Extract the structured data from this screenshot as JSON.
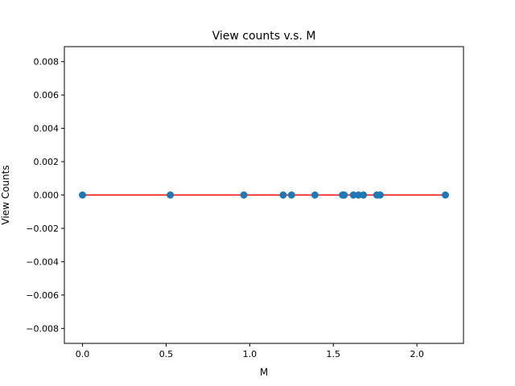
{
  "chart_data": {
    "type": "scatter",
    "title": "View counts v.s. M",
    "xlabel": "M",
    "ylabel": "View Counts",
    "xlim": [
      -0.1085,
      2.2785
    ],
    "ylim": [
      -0.0089,
      0.0089
    ],
    "grid": false,
    "x_ticks": [
      0.0,
      0.5,
      1.0,
      1.5,
      2.0
    ],
    "x_tick_labels": [
      "0.0",
      "0.5",
      "1.0",
      "1.5",
      "2.0"
    ],
    "y_ticks": [
      -0.008,
      -0.006,
      -0.004,
      -0.002,
      0.0,
      0.002,
      0.004,
      0.006,
      0.008
    ],
    "y_tick_labels": [
      "−0.008",
      "−0.006",
      "−0.004",
      "−0.002",
      "0.000",
      "0.002",
      "0.004",
      "0.006",
      "0.008"
    ],
    "points": {
      "x": [
        0.0,
        0.525,
        0.965,
        1.2,
        1.25,
        1.39,
        1.555,
        1.565,
        1.62,
        1.65,
        1.68,
        1.76,
        1.78,
        2.17
      ],
      "y": [
        0,
        0,
        0,
        0,
        0,
        0,
        0,
        0,
        0,
        0,
        0,
        0,
        0,
        0
      ],
      "color": "#1f77b4"
    },
    "fit_line": {
      "x": [
        0.0,
        2.17
      ],
      "y": [
        0,
        0
      ],
      "color": "#ff0000"
    }
  }
}
